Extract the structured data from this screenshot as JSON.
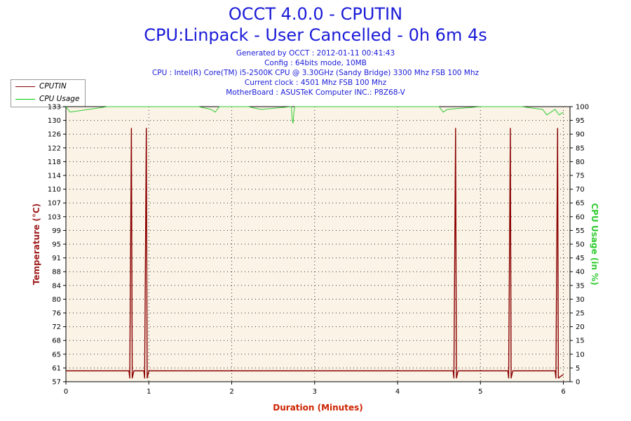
{
  "header": {
    "title": "OCCT 4.0.0 - CPUTIN",
    "subtitle": "CPU:Linpack - User Cancelled - 0h 6m 4s",
    "info": [
      "Generated by OCCT : 2012-01-11 00:41:43",
      "Config : 64bits mode, 10MB",
      "CPU : Intel(R) Core(TM) i5-2500K CPU @ 3.30GHz (Sandy Bridge) 3300 Mhz FSB 100 Mhz",
      "Current clock : 4501 Mhz FSB 100 Mhz",
      "MotherBoard : ASUSTeK Computer INC.: P8Z68-V"
    ]
  },
  "legend": {
    "items": [
      {
        "label": "CPUTIN",
        "color": "#8b0000"
      },
      {
        "label": "CPU Usage",
        "color": "#00cc00"
      }
    ]
  },
  "colors": {
    "plot_bg": "#faf3e6",
    "grid": "#333333",
    "temperature": "#8b0000",
    "usage": "#33cc33",
    "title": "#1a1ad8",
    "left_axis_label": "#a02020",
    "right_axis_label": "#33cc33",
    "x_axis_label": "#cc2200"
  },
  "chart_data": {
    "type": "line",
    "xlabel": "Duration (Minutes)",
    "ylabel": "Temperature (°C)",
    "y2label": "CPU Usage (in %)",
    "xlim": [
      0,
      6.08
    ],
    "ylim": [
      57,
      133
    ],
    "y2lim": [
      0,
      100
    ],
    "x_ticks": [
      "0",
      "1",
      "2",
      "3",
      "4",
      "5",
      "6"
    ],
    "y_ticks": [
      "57",
      "61",
      "65",
      "68",
      "72",
      "76",
      "80",
      "84",
      "88",
      "91",
      "95",
      "99",
      "103",
      "107",
      "110",
      "114",
      "118",
      "122",
      "126",
      "130",
      "133"
    ],
    "y2_ticks": [
      "0",
      "5",
      "10",
      "15",
      "20",
      "25",
      "30",
      "35",
      "40",
      "45",
      "50",
      "55",
      "60",
      "65",
      "70",
      "75",
      "80",
      "85",
      "90",
      "95",
      "100"
    ],
    "grid": true,
    "legend_position": "top-left",
    "series": [
      {
        "name": "CPUTIN",
        "axis": "left",
        "x": [
          0,
          0.76,
          0.77,
          0.79,
          0.8,
          0.82,
          0.94,
          0.95,
          0.97,
          0.98,
          1.0,
          4.67,
          4.68,
          4.7,
          4.71,
          4.73,
          5.33,
          5.34,
          5.36,
          5.37,
          5.39,
          5.9,
          5.91,
          5.93,
          5.94,
          6.0
        ],
        "values": [
          60,
          60,
          58,
          127,
          58,
          60,
          60,
          58,
          127,
          58,
          60,
          60,
          58,
          127,
          58,
          60,
          60,
          58,
          127,
          58,
          60,
          60,
          58,
          127,
          58,
          59
        ]
      },
      {
        "name": "CPU Usage",
        "axis": "right",
        "x": [
          0,
          0.05,
          0.5,
          0.8,
          1.0,
          1.6,
          1.75,
          1.8,
          1.85,
          2.2,
          2.35,
          2.72,
          2.73,
          2.74,
          2.75,
          2.76,
          3.2,
          3.6,
          4.5,
          4.55,
          4.6,
          5.0,
          5.5,
          5.75,
          5.8,
          5.85,
          5.9,
          5.95,
          6.0
        ],
        "values": [
          100,
          98,
          100,
          100,
          100,
          100,
          99,
          98,
          100,
          100,
          99,
          100,
          95,
          94,
          98,
          100,
          100,
          100,
          100,
          98,
          99,
          100,
          100,
          99,
          97,
          98,
          99,
          97,
          98
        ]
      }
    ]
  }
}
